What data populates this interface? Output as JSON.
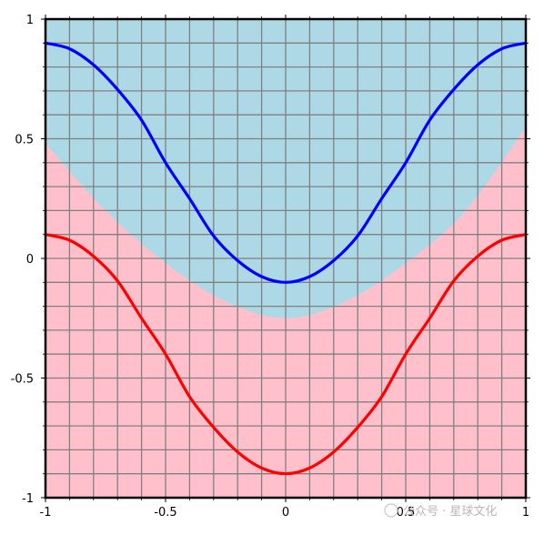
{
  "chart_data": {
    "type": "area",
    "title": "",
    "xlabel": "",
    "ylabel": "",
    "xlim": [
      -1,
      1
    ],
    "ylim": [
      -1,
      1
    ],
    "grid": true,
    "grid_step": 0.1,
    "x_ticks": [
      -1,
      -0.5,
      0,
      0.5,
      1
    ],
    "x_tick_labels": [
      "-1",
      "-0.5",
      "0",
      "0.5",
      "1"
    ],
    "y_ticks": [
      1,
      0.5,
      0,
      -0.5,
      -1
    ],
    "y_tick_labels": [
      "1",
      "0.5",
      "0",
      "-0.5",
      "-1"
    ],
    "regions": [
      {
        "name": "",
        "color": "#add8e6",
        "position": "above boundary"
      },
      {
        "name": "",
        "color": "#ffc0cb",
        "position": "below boundary"
      }
    ],
    "boundary": {
      "x": [
        -1,
        -0.75,
        -0.5,
        -0.25,
        0,
        0.25,
        0.5,
        0.75,
        1
      ],
      "y": [
        0.48,
        0.2,
        -0.02,
        -0.18,
        -0.25,
        -0.18,
        -0.02,
        0.2,
        0.55
      ]
    },
    "series": [
      {
        "color": "#0000ff",
        "x": [
          -1,
          -0.9,
          -0.8,
          -0.7,
          -0.6,
          -0.5,
          -0.4,
          -0.3,
          -0.2,
          -0.1,
          0,
          0.1,
          0.2,
          0.3,
          0.4,
          0.5,
          0.6,
          0.7,
          0.8,
          0.9,
          1
        ],
        "y": [
          0.9,
          0.876,
          0.809,
          0.706,
          0.578,
          0.4,
          0.25,
          0.094,
          -0.009,
          -0.076,
          -0.1,
          -0.076,
          -0.009,
          0.094,
          0.25,
          0.4,
          0.578,
          0.706,
          0.809,
          0.876,
          0.9
        ]
      },
      {
        "color": "#ff0000",
        "x": [
          -1,
          -0.9,
          -0.8,
          -0.7,
          -0.6,
          -0.5,
          -0.4,
          -0.3,
          -0.2,
          -0.1,
          0,
          0.1,
          0.2,
          0.3,
          0.4,
          0.5,
          0.6,
          0.7,
          0.8,
          0.9,
          1
        ],
        "y": [
          0.1,
          0.076,
          0.009,
          -0.094,
          -0.25,
          -0.4,
          -0.578,
          -0.706,
          -0.809,
          -0.876,
          -0.9,
          -0.876,
          -0.809,
          -0.706,
          -0.578,
          -0.4,
          -0.25,
          -0.094,
          0.009,
          0.076,
          0.1
        ]
      }
    ]
  },
  "watermark": {
    "text": "公众号 · 星球文化"
  }
}
